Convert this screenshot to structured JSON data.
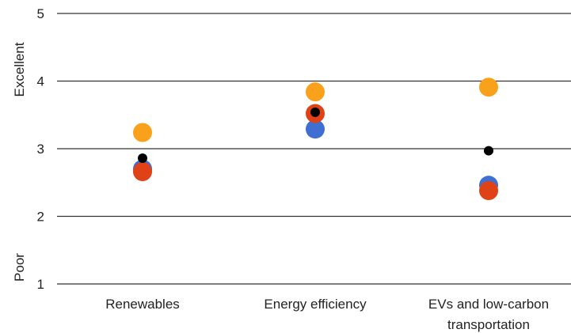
{
  "chart_data": {
    "type": "scatter",
    "title": "",
    "categories": [
      "Renewables",
      "Energy efficiency",
      "EVs and low-carbon\ntransportation"
    ],
    "ylim": [
      1,
      5
    ],
    "yticks": [
      1,
      2,
      3,
      4,
      5
    ],
    "y_annotations": {
      "top": "Excellent",
      "bottom": "Poor"
    },
    "grid": true,
    "series": [
      {
        "color": "#F9A11B",
        "values": [
          3.24,
          3.84,
          3.91
        ]
      },
      {
        "color": "#3F6FD0",
        "values": [
          2.7,
          3.29,
          2.46
        ]
      },
      {
        "color": "#DE4216",
        "values": [
          2.66,
          3.52,
          2.38
        ]
      },
      {
        "color": "#000000",
        "values": [
          2.86,
          3.54,
          2.97
        ]
      }
    ]
  }
}
